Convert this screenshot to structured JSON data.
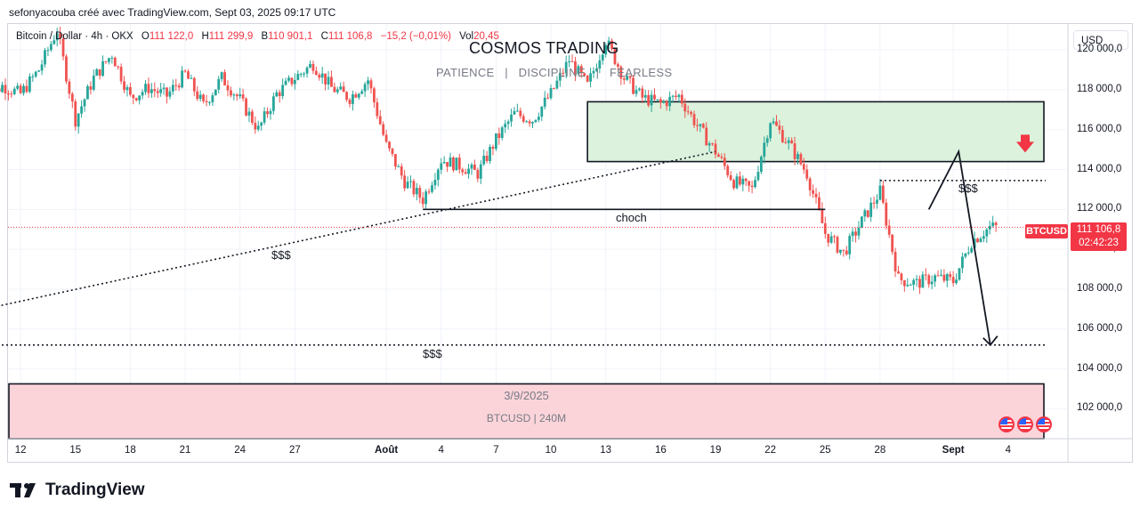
{
  "attribution": "sefonyacouba créé avec TradingView.com, Sept 03, 2025 09:17 UTC",
  "legend": {
    "symbol": "Bitcoin / Dollar · 4h · OKX",
    "o_label": "O",
    "o_value": "111 122,0",
    "h_label": "H",
    "h_value": "111 299,9",
    "b_label": "B",
    "b_value": "110 901,1",
    "c_label": "C",
    "c_value": "111 106,8",
    "change": "−15,2 (−0,01%)",
    "vol_label": "Vol",
    "vol_value": "20,45"
  },
  "watermark": {
    "title": "COSMOS TRADING",
    "subtitle": "PATIENCE   |   DISCIPLINE   |   FEARLESS"
  },
  "currency": "USD",
  "price_badge": {
    "symbol": "BTCUSD",
    "price": "111 106,8",
    "countdown": "02:42:23"
  },
  "annotations": {
    "choch": "choch",
    "liq_left": "$$$",
    "liq_bottom": "$$$",
    "liq_right": "$$$"
  },
  "info_box": {
    "date": "3/9/2025",
    "symbol_tf": "BTCUSD | 240M"
  },
  "footer": {
    "logo": "TradingView"
  },
  "colors": {
    "up": "#26a69a",
    "down": "#ef5350",
    "zone_fill": "#dcf2dc",
    "info_fill": "#fbd4da",
    "badge": "#f23645"
  },
  "icons": [
    "sell-arrow-icon",
    "economic-event-flag-icon",
    "tradingview-logo-icon"
  ],
  "chart_data": {
    "type": "candlestick",
    "timeframe": "4h",
    "ylim": [
      100500,
      121300
    ],
    "y_ticks": [
      "120 000,0",
      "118 000,0",
      "116 000,0",
      "114 000,0",
      "112 000,0",
      "110 000,0",
      "108 000,0",
      "106 000,0",
      "104 000,0",
      "102 000,0"
    ],
    "y_tick_values": [
      120000,
      118000,
      116000,
      114000,
      112000,
      110000,
      108000,
      106000,
      104000,
      102000
    ],
    "x_ticks": [
      "12",
      "15",
      "18",
      "21",
      "24",
      "27",
      "Août",
      "4",
      "7",
      "10",
      "13",
      "16",
      "19",
      "22",
      "25",
      "28",
      "Sept",
      "4"
    ],
    "x_tick_dates": [
      "2025-07-12",
      "2025-07-15",
      "2025-07-18",
      "2025-07-21",
      "2025-07-24",
      "2025-07-27",
      "2025-08-01",
      "2025-08-04",
      "2025-08-07",
      "2025-08-10",
      "2025-08-13",
      "2025-08-16",
      "2025-08-19",
      "2025-08-22",
      "2025-08-25",
      "2025-08-28",
      "2025-09-01",
      "2025-09-04"
    ],
    "start_date": "2025-07-10",
    "end_date": "2025-09-05",
    "last_candle_date": "2025-09-03",
    "waypoints": [
      [
        "2025-07-10",
        117500
      ],
      [
        "2025-07-11",
        118200
      ],
      [
        "2025-07-12",
        117800
      ],
      [
        "2025-07-13",
        119000
      ],
      [
        "2025-07-14",
        121000
      ],
      [
        "2025-07-15",
        116500
      ],
      [
        "2025-07-16",
        118600
      ],
      [
        "2025-07-17",
        119800
      ],
      [
        "2025-07-18",
        117600
      ],
      [
        "2025-07-19",
        118100
      ],
      [
        "2025-07-20",
        117700
      ],
      [
        "2025-07-21",
        118800
      ],
      [
        "2025-07-22",
        117200
      ],
      [
        "2025-07-23",
        118600
      ],
      [
        "2025-07-24",
        117500
      ],
      [
        "2025-07-25",
        116000
      ],
      [
        "2025-07-26",
        117800
      ],
      [
        "2025-07-27",
        118600
      ],
      [
        "2025-07-28",
        119300
      ],
      [
        "2025-07-29",
        118100
      ],
      [
        "2025-07-30",
        117600
      ],
      [
        "2025-07-31",
        118500
      ],
      [
        "2025-08-01",
        115200
      ],
      [
        "2025-08-02",
        113400
      ],
      [
        "2025-08-03",
        112500
      ],
      [
        "2025-08-04",
        114500
      ],
      [
        "2025-08-05",
        114200
      ],
      [
        "2025-08-06",
        113800
      ],
      [
        "2025-08-07",
        115500
      ],
      [
        "2025-08-08",
        116800
      ],
      [
        "2025-08-09",
        116500
      ],
      [
        "2025-08-10",
        117800
      ],
      [
        "2025-08-11",
        119500
      ],
      [
        "2025-08-12",
        118200
      ],
      [
        "2025-08-13",
        120500
      ],
      [
        "2025-08-14",
        118600
      ],
      [
        "2025-08-15",
        117600
      ],
      [
        "2025-08-16",
        117300
      ],
      [
        "2025-08-17",
        117700
      ],
      [
        "2025-08-18",
        116200
      ],
      [
        "2025-08-19",
        114900
      ],
      [
        "2025-08-20",
        113400
      ],
      [
        "2025-08-21",
        113000
      ],
      [
        "2025-08-22",
        116500
      ],
      [
        "2025-08-23",
        115300
      ],
      [
        "2025-08-24",
        113800
      ],
      [
        "2025-08-25",
        110800
      ],
      [
        "2025-08-26",
        109800
      ],
      [
        "2025-08-27",
        111400
      ],
      [
        "2025-08-28",
        112900
      ],
      [
        "2025-08-29",
        108500
      ],
      [
        "2025-08-30",
        108300
      ],
      [
        "2025-08-31",
        108600
      ],
      [
        "2025-09-01",
        108400
      ],
      [
        "2025-09-02",
        110400
      ],
      [
        "2025-09-03",
        111106.8
      ]
    ],
    "supply_zone": {
      "from": "2025-08-12",
      "to": "2025-09-05",
      "low": 114400,
      "high": 117400
    },
    "choch_level": {
      "from": "2025-08-03",
      "to": "2025-08-25",
      "price": 112000,
      "label": "choch"
    },
    "liquidity_levels": [
      {
        "from": "2025-08-28",
        "to": "2025-09-05",
        "price": 113450,
        "label": "$$$"
      },
      {
        "from": "2025-07-10",
        "to": "2025-09-05",
        "price": 105200,
        "label": "$$$"
      }
    ],
    "trendline": {
      "from": [
        "2025-07-10",
        107000
      ],
      "to": [
        "2025-08-19",
        114900
      ],
      "label": "$$$"
    },
    "projection": [
      [
        "2025-09-02",
        112000
      ],
      [
        "2025-09-03",
        114900
      ],
      [
        "2025-09-04",
        105200
      ]
    ],
    "current_price": 111106.8
  }
}
